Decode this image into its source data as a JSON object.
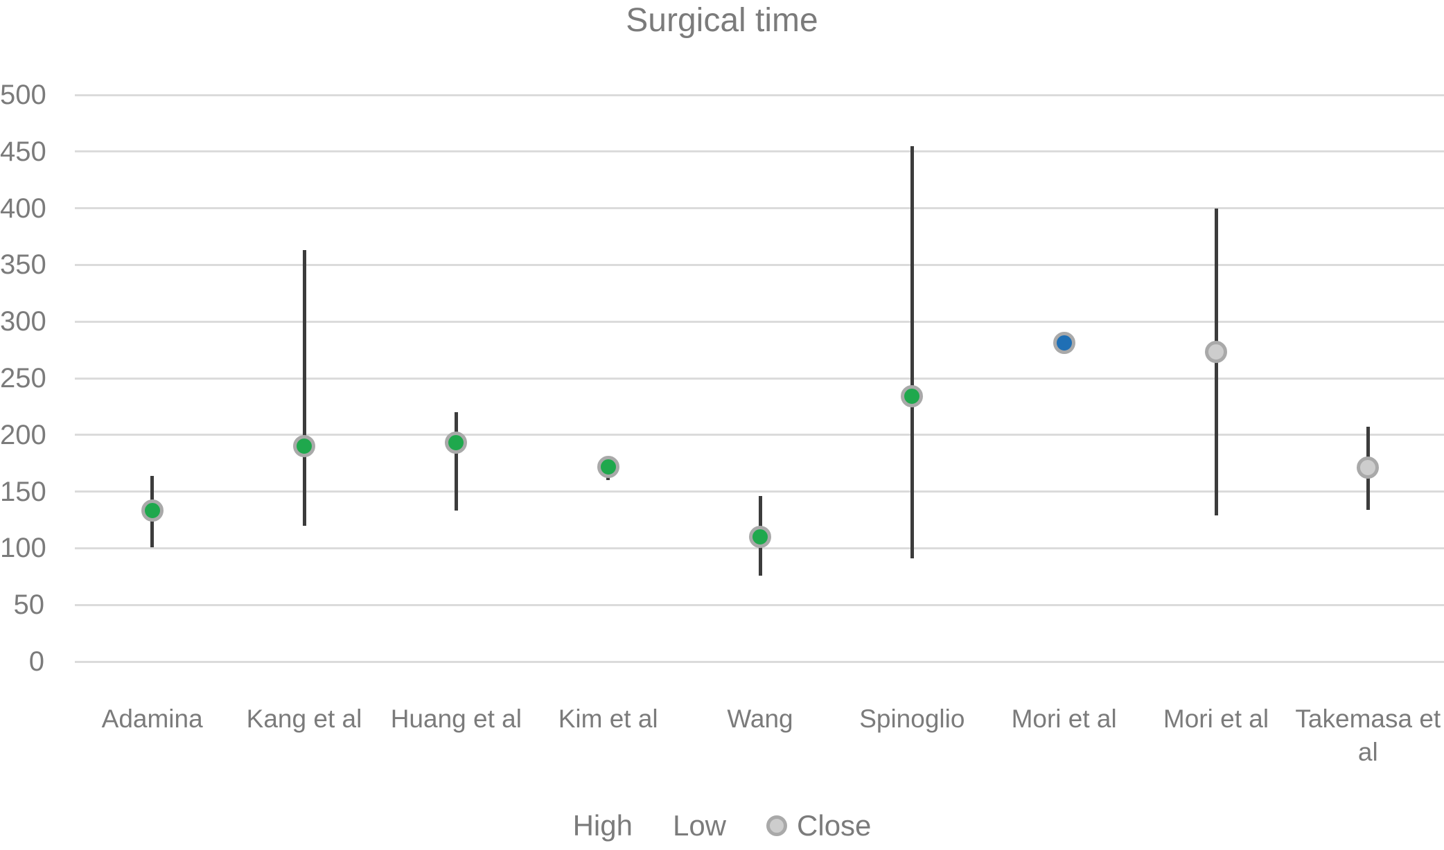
{
  "title": "Surgical time",
  "chart_data": {
    "type": "high-low-close",
    "title": "Surgical time",
    "categories": [
      "Adamina",
      "Kang et al",
      "Huang et al",
      "Kim et al",
      "Wang",
      "Spinoglio",
      "Mori et al",
      "Mori et al",
      "Takemasa et al"
    ],
    "series": [
      {
        "name": "High",
        "values": [
          164,
          363,
          220,
          180,
          146,
          455,
          284,
          400,
          207
        ]
      },
      {
        "name": "Low",
        "values": [
          101,
          120,
          133,
          160,
          76,
          91,
          278,
          129,
          134
        ]
      },
      {
        "name": "Close",
        "values": [
          133,
          190,
          193,
          172,
          110,
          234,
          281,
          273,
          171
        ]
      }
    ],
    "marker_colors": [
      "#1fa84d",
      "#1fa84d",
      "#1fa84d",
      "#1fa84d",
      "#1fa84d",
      "#1fa84d",
      "#1f6fb5",
      "#cdcdcd",
      "#cdcdcd"
    ],
    "marker_border_color": "#a9a9a9",
    "high_low_line_color": "#3c3c3c",
    "gridline_color": "#dbdbdb",
    "text_color": "#7b7b7b",
    "yticks": [
      0,
      50,
      100,
      150,
      200,
      250,
      300,
      350,
      400,
      450,
      500
    ],
    "ylim": [
      0,
      500
    ],
    "grid": true,
    "legend": {
      "position": "bottom",
      "items": [
        {
          "label": "High",
          "marker": "none"
        },
        {
          "label": "Low",
          "marker": "none"
        },
        {
          "label": "Close",
          "marker": "circle",
          "marker_color": "#cdcdcd"
        }
      ]
    }
  }
}
